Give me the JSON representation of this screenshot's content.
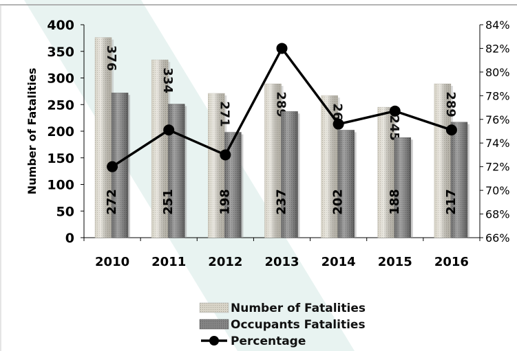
{
  "chart_data": {
    "type": "bar",
    "categories": [
      "2010",
      "2011",
      "2012",
      "2013",
      "2014",
      "2015",
      "2016"
    ],
    "ylabel": "Number of Fatalities",
    "ylim": [
      0,
      400
    ],
    "yticks": [
      0,
      50,
      100,
      150,
      200,
      250,
      300,
      350,
      400
    ],
    "y2lim": [
      66,
      84
    ],
    "y2ticks": [
      "66%",
      "68%",
      "70%",
      "72%",
      "74%",
      "76%",
      "78%",
      "80%",
      "82%",
      "84%"
    ],
    "series": [
      {
        "name": "Number of Fatalities",
        "type": "bar",
        "axis": "left",
        "color": "#d4d0c4",
        "values": [
          376,
          334,
          271,
          289,
          267,
          245,
          289
        ]
      },
      {
        "name": "Occupants Fatalities",
        "type": "bar",
        "axis": "left",
        "color": "#7c7c7c",
        "values": [
          272,
          251,
          198,
          237,
          202,
          188,
          217
        ]
      },
      {
        "name": "Percentage",
        "type": "line",
        "axis": "right",
        "color": "#000000",
        "values": [
          72.0,
          75.1,
          73.0,
          82.0,
          75.6,
          76.7,
          75.1
        ]
      }
    ],
    "legend_position": "bottom",
    "grid": false
  }
}
